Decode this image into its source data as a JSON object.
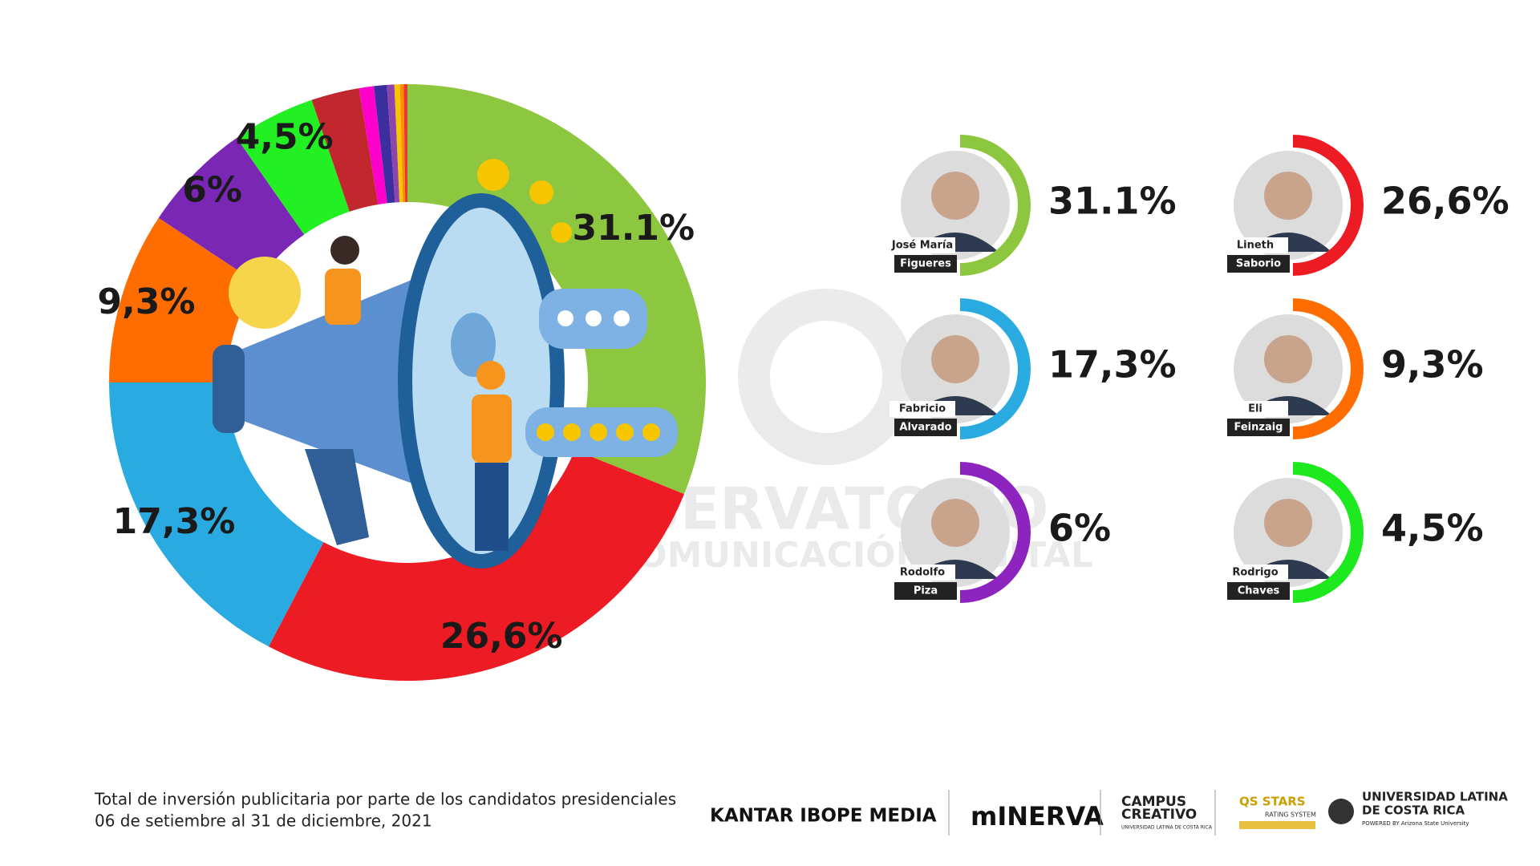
{
  "chart_data": {
    "type": "donut",
    "values": [
      31.1,
      26.6,
      17.3,
      9.3,
      6,
      4.5,
      2.6,
      0.8,
      0.7,
      0.4,
      0.3,
      0.2,
      0.2
    ],
    "value_labels": [
      "31.1%",
      "26,6%",
      "17,3%",
      "9,3%",
      "6%",
      "4,5%",
      null,
      null,
      null,
      null,
      null,
      null,
      null
    ],
    "colors": [
      "#8dc63f",
      "#ed1c24",
      "#29abe2",
      "#ff6d00",
      "#7b27b6",
      "#22f022",
      "#c1272d",
      "#ff00cc",
      "#3b2fa0",
      "#8e44ad",
      "#f7c600",
      "#ff8c00",
      "#e53935"
    ]
  },
  "candidates": [
    {
      "first": "José María",
      "last": "Figueres",
      "share": "31.1%",
      "color": "#8dc63f"
    },
    {
      "first": "Lineth",
      "last": "Saborio",
      "share": "26,6%",
      "color": "#ed1c24"
    },
    {
      "first": "Fabricio",
      "last": "Alvarado",
      "share": "17,3%",
      "color": "#29abe2"
    },
    {
      "first": "Eli",
      "last": "Feinzaig",
      "share": "9,3%",
      "color": "#ff6d00"
    },
    {
      "first": "Rodolfo",
      "last": "Piza",
      "share": "6%",
      "color": "#8e24c0"
    },
    {
      "first": "Rodrigo",
      "last": "Chaves",
      "share": "4,5%",
      "color": "#1ee81e"
    }
  ],
  "watermark": {
    "line1": "OBSERVATORIO",
    "line2": "DE COMUNICACIÓN DIGITAL"
  },
  "footer": {
    "line1": "Total de inversión publicitaria por parte de los candidatos presidenciales",
    "line2": "06 de setiembre al 31 de diciembre, 2021"
  },
  "logos": {
    "kantar": "KANTAR IBOPE MEDIA",
    "minerva": "mINERVA",
    "campus1": "CAMPUS",
    "campus2": "CREATIVO",
    "campus3": "UNIVERSIDAD LATINA DE COSTA RICA",
    "stars1": "QS STARS",
    "stars2": "RATING SYSTEM",
    "ulatina1": "UNIVERSIDAD LATINA",
    "ulatina2": "DE COSTA RICA",
    "ulatina3": "POWERED BY Arizona State University"
  }
}
